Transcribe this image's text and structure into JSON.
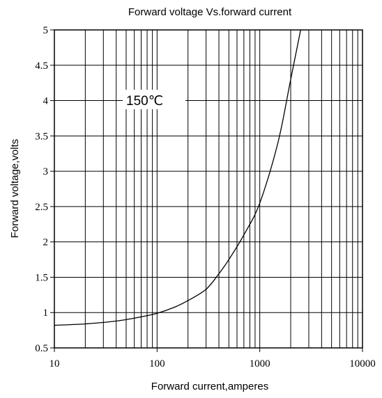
{
  "chart_data": {
    "type": "line",
    "title": "Forward voltage Vs.forward current",
    "xlabel": "Forward current,amperes",
    "ylabel": "Forward voltage,volts",
    "x_scale": "log",
    "xlim": [
      10,
      10000
    ],
    "ylim": [
      0.5,
      5
    ],
    "x_ticks": [
      10,
      100,
      1000,
      10000
    ],
    "x_tick_labels": [
      "10",
      "100",
      "1000",
      "10000"
    ],
    "y_ticks": [
      0.5,
      1,
      1.5,
      2,
      2.5,
      3,
      3.5,
      4,
      4.5,
      5
    ],
    "y_tick_labels": [
      "0.5",
      "1",
      "1.5",
      "2",
      "2.5",
      "3",
      "3.5",
      "4",
      "4.5",
      "5"
    ],
    "grid": true,
    "annotation": "150℃",
    "series": [
      {
        "name": "",
        "color": "#000000",
        "x": [
          10,
          20,
          40,
          70,
          100,
          150,
          200,
          300,
          400,
          500,
          700,
          1000,
          1500,
          2000,
          2500
        ],
        "y": [
          0.82,
          0.84,
          0.88,
          0.94,
          0.99,
          1.08,
          1.17,
          1.33,
          1.55,
          1.75,
          2.1,
          2.55,
          3.4,
          4.3,
          5.0
        ]
      }
    ]
  }
}
